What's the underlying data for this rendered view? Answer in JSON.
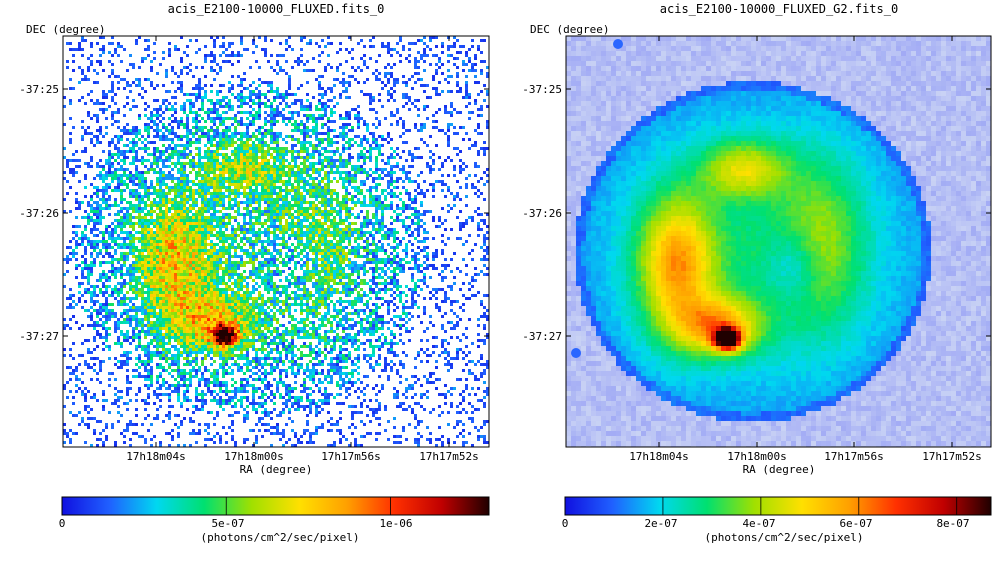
{
  "chart_data": [
    {
      "type": "heatmap",
      "title": "acis_E2100-10000_FLUXED.fits_0",
      "xlabel": "RA (degree)",
      "ylabel": "DEC (degree)",
      "x_ticks": [
        "17h18m04s",
        "17h18m00s",
        "17h17m56s",
        "17h17m52s"
      ],
      "y_ticks": [
        "-37:25",
        "-37:26",
        "-37:27"
      ],
      "colorbar": {
        "label": "(photons/cm^2/sec/pixel)",
        "ticks": [
          "0",
          "5e-07",
          "1e-06"
        ],
        "tick_values": [
          0,
          5e-07,
          1e-06
        ],
        "range": [
          0,
          1.3e-06
        ],
        "colormap": [
          "#1010e0",
          "#2060ff",
          "#00d8f0",
          "#00e070",
          "#a0e000",
          "#ffe000",
          "#ffa000",
          "#ff3000",
          "#c00000",
          "#200000"
        ]
      },
      "rendering": "noisy"
    },
    {
      "type": "heatmap",
      "title": "acis_E2100-10000_FLUXED_G2.fits_0",
      "xlabel": "RA (degree)",
      "ylabel": "DEC (degree)",
      "x_ticks": [
        "17h18m04s",
        "17h18m00s",
        "17h17m56s",
        "17h17m52s"
      ],
      "y_ticks": [
        "-37:25",
        "-37:26",
        "-37:27"
      ],
      "colorbar": {
        "label": "(photons/cm^2/sec/pixel)",
        "ticks": [
          "0",
          "2e-07",
          "4e-07",
          "6e-07",
          "8e-07"
        ],
        "tick_values": [
          0,
          2e-07,
          4e-07,
          6e-07,
          8e-07
        ],
        "range": [
          0,
          8.7e-07
        ],
        "colormap": [
          "#1010e0",
          "#2060ff",
          "#00d8f0",
          "#00e070",
          "#a0e000",
          "#ffe000",
          "#ffa000",
          "#ff3000",
          "#c00000",
          "#200000"
        ]
      },
      "rendering": "smooth"
    }
  ]
}
